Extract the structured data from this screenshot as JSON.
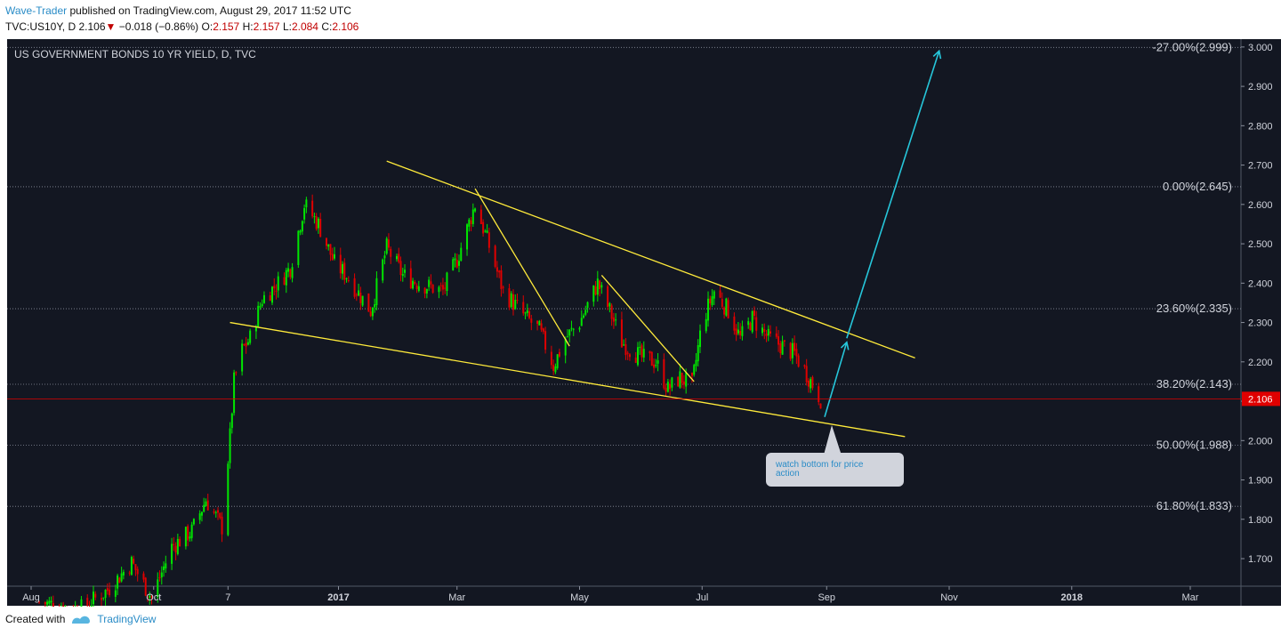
{
  "header": {
    "author": "Wave-Trader",
    "published_text": "published on TradingView.com, August 29, 2017 11:52 UTC"
  },
  "ticker": {
    "symbol": "TVC:US10Y, D",
    "last": "2.106",
    "arrow": "▼",
    "change": "−0.018 (−0.86%)",
    "open_label": "O:",
    "open": "2.157",
    "high_label": "H:",
    "high": "2.157",
    "low_label": "L:",
    "low": "2.084",
    "close_label": "C:",
    "close": "2.106"
  },
  "chart_data": {
    "type": "candlestick",
    "title": "US GOVERNMENT BONDS 10 YR YIELD, D, TVC",
    "ylim": [
      1.63,
      3.02
    ],
    "y_ticks": [
      "3.000",
      "2.900",
      "2.800",
      "2.700",
      "2.600",
      "2.500",
      "2.400",
      "2.300",
      "2.200",
      "2.100",
      "2.000",
      "1.900",
      "1.800",
      "1.700"
    ],
    "x_ticks": [
      {
        "label": "Aug",
        "date": "2016-08-01"
      },
      {
        "label": "Oct",
        "date": "2016-10-01"
      },
      {
        "label": "7",
        "date": "2016-11-07"
      },
      {
        "label": "2017",
        "date": "2017-01-01"
      },
      {
        "label": "Mar",
        "date": "2017-03-01"
      },
      {
        "label": "May",
        "date": "2017-05-01"
      },
      {
        "label": "Jul",
        "date": "2017-07-01"
      },
      {
        "label": "Sep",
        "date": "2017-09-01"
      },
      {
        "label": "Nov",
        "date": "2017-11-01"
      },
      {
        "label": "2018",
        "date": "2018-01-01"
      },
      {
        "label": "Mar",
        "date": "2018-03-01"
      }
    ],
    "last_price": {
      "value": 2.106,
      "label": "2.106"
    },
    "fib_levels": [
      {
        "label": "-27.00%(2.999)",
        "value": 2.999
      },
      {
        "label": "0.00%(2.645)",
        "value": 2.645
      },
      {
        "label": "23.60%(2.335)",
        "value": 2.335
      },
      {
        "label": "38.20%(2.143)",
        "value": 2.143
      },
      {
        "label": "50.00%(1.988)",
        "value": 1.988
      },
      {
        "label": "61.80%(1.833)",
        "value": 1.833
      }
    ],
    "price_path": [
      [
        "2016-08-05",
        1.59
      ],
      [
        "2016-08-25",
        1.57
      ],
      [
        "2016-09-08",
        1.62
      ],
      [
        "2016-09-20",
        1.69
      ],
      [
        "2016-09-30",
        1.6
      ],
      [
        "2016-10-10",
        1.73
      ],
      [
        "2016-10-20",
        1.77
      ],
      [
        "2016-10-27",
        1.85
      ],
      [
        "2016-11-04",
        1.78
      ],
      [
        "2016-11-08",
        2.01
      ],
      [
        "2016-11-10",
        2.15
      ],
      [
        "2016-11-14",
        2.23
      ],
      [
        "2016-11-18",
        2.26
      ],
      [
        "2016-11-24",
        2.36
      ],
      [
        "2016-12-02",
        2.4
      ],
      [
        "2016-12-08",
        2.44
      ],
      [
        "2016-12-15",
        2.6
      ],
      [
        "2016-12-22",
        2.55
      ],
      [
        "2016-12-30",
        2.45
      ],
      [
        "2017-01-05",
        2.42
      ],
      [
        "2017-01-17",
        2.33
      ],
      [
        "2017-01-25",
        2.49
      ],
      [
        "2017-02-02",
        2.42
      ],
      [
        "2017-02-10",
        2.4
      ],
      [
        "2017-02-22",
        2.38
      ],
      [
        "2017-03-01",
        2.46
      ],
      [
        "2017-03-10",
        2.6
      ],
      [
        "2017-03-16",
        2.51
      ],
      [
        "2017-03-24",
        2.38
      ],
      [
        "2017-04-03",
        2.32
      ],
      [
        "2017-04-11",
        2.28
      ],
      [
        "2017-04-18",
        2.19
      ],
      [
        "2017-04-24",
        2.26
      ],
      [
        "2017-05-01",
        2.3
      ],
      [
        "2017-05-10",
        2.4
      ],
      [
        "2017-05-16",
        2.33
      ],
      [
        "2017-05-22",
        2.25
      ],
      [
        "2017-06-01",
        2.21
      ],
      [
        "2017-06-08",
        2.2
      ],
      [
        "2017-06-14",
        2.13
      ],
      [
        "2017-06-20",
        2.16
      ],
      [
        "2017-06-26",
        2.14
      ],
      [
        "2017-07-01",
        2.3
      ],
      [
        "2017-07-07",
        2.38
      ],
      [
        "2017-07-14",
        2.33
      ],
      [
        "2017-07-20",
        2.26
      ],
      [
        "2017-07-26",
        2.31
      ],
      [
        "2017-08-03",
        2.26
      ],
      [
        "2017-08-10",
        2.24
      ],
      [
        "2017-08-16",
        2.22
      ],
      [
        "2017-08-22",
        2.17
      ],
      [
        "2017-08-29",
        2.106
      ]
    ],
    "trendlines": [
      {
        "color": "#ffeb3b",
        "from": [
          "2017-01-25",
          2.71
        ],
        "to": [
          "2017-10-15",
          2.21
        ]
      },
      {
        "color": "#ffeb3b",
        "from": [
          "2016-11-08",
          2.3
        ],
        "to": [
          "2017-10-10",
          2.01
        ]
      },
      {
        "color": "#ffeb3b",
        "from": [
          "2017-03-10",
          2.64
        ],
        "to": [
          "2017-04-26",
          2.24
        ]
      },
      {
        "color": "#ffeb3b",
        "from": [
          "2017-05-12",
          2.42
        ],
        "to": [
          "2017-06-27",
          2.15
        ]
      },
      {
        "color": "#26c6da",
        "from": [
          "2017-08-31",
          2.06
        ],
        "to": [
          "2017-09-11",
          2.25
        ]
      },
      {
        "color": "#26c6da",
        "from": [
          "2017-09-11",
          2.26
        ],
        "to": [
          "2017-10-27",
          2.99
        ]
      }
    ],
    "annotation": {
      "text": "watch bottom for price action",
      "date": "2017-09-01",
      "value": 2.03
    },
    "colors": {
      "background": "#131722",
      "up": "#00e600",
      "down": "#e00000",
      "trend": "#ffeb3b",
      "projection": "#26c6da",
      "last_price": "#e00000"
    }
  },
  "footer": {
    "created_with": "Created with",
    "brand": "TradingView"
  }
}
